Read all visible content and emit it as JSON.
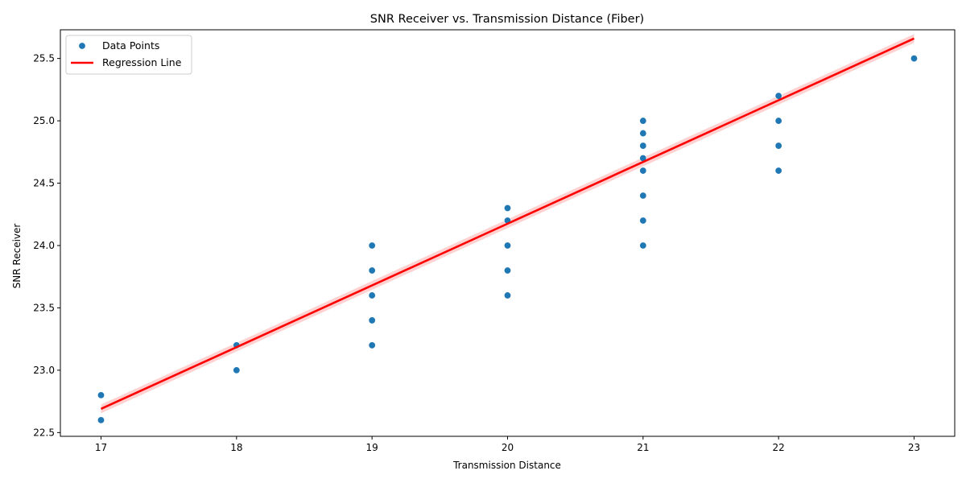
{
  "chart_data": {
    "type": "scatter",
    "title": "SNR Receiver vs. Transmission Distance (Fiber)",
    "xlabel": "Transmission Distance",
    "ylabel": "SNR Receiver",
    "xlim": [
      16.7,
      23.3
    ],
    "ylim": [
      22.47,
      25.73
    ],
    "xticks": [
      17,
      18,
      19,
      20,
      21,
      22,
      23
    ],
    "yticks": [
      22.5,
      23.0,
      23.5,
      24.0,
      24.5,
      25.0,
      25.5
    ],
    "grid": false,
    "legend": {
      "placement": "top-left",
      "entries": [
        "Data Points",
        "Regression Line"
      ]
    },
    "series": [
      {
        "name": "Data Points",
        "kind": "scatter",
        "color": "#1f77b4",
        "points": [
          [
            17,
            22.8
          ],
          [
            17,
            22.6
          ],
          [
            18,
            23.2
          ],
          [
            18,
            23.0
          ],
          [
            19,
            24.0
          ],
          [
            19,
            23.8
          ],
          [
            19,
            23.6
          ],
          [
            19,
            23.4
          ],
          [
            19,
            23.2
          ],
          [
            20,
            24.3
          ],
          [
            20,
            24.2
          ],
          [
            20,
            24.0
          ],
          [
            20,
            23.8
          ],
          [
            20,
            23.6
          ],
          [
            21,
            25.0
          ],
          [
            21,
            24.9
          ],
          [
            21,
            24.8
          ],
          [
            21,
            24.7
          ],
          [
            21,
            24.6
          ],
          [
            21,
            24.4
          ],
          [
            21,
            24.2
          ],
          [
            21,
            24.0
          ],
          [
            22,
            25.2
          ],
          [
            22,
            25.0
          ],
          [
            22,
            24.8
          ],
          [
            22,
            24.6
          ],
          [
            23,
            25.5
          ]
        ]
      },
      {
        "name": "Regression Line",
        "kind": "line",
        "color": "#ff0000",
        "band_color": "#ffb3b3",
        "start": [
          17,
          22.69
        ],
        "end": [
          23,
          25.66
        ]
      }
    ]
  }
}
